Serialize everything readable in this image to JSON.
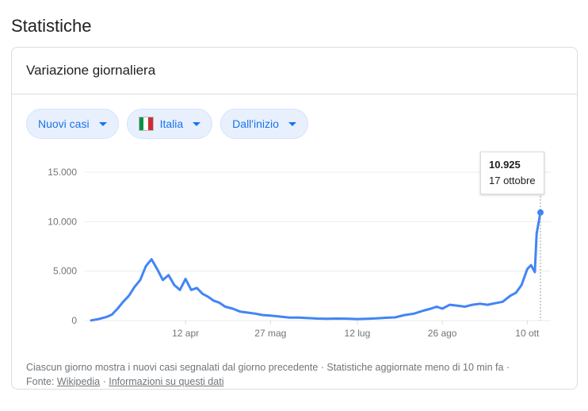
{
  "section_title": "Statistiche",
  "card": {
    "title": "Variazione giornaliera",
    "filters": [
      {
        "label": "Nuovi casi",
        "icon": "dropdown-caret-icon"
      },
      {
        "label": "Italia",
        "icon": "italy-flag-icon",
        "flag_colors": [
          "#009246",
          "#ffffff",
          "#ce2b37"
        ]
      },
      {
        "label": "Dall'inizio",
        "icon": "dropdown-caret-icon"
      }
    ]
  },
  "tooltip": {
    "value": "10.925",
    "date": "17 ottobre"
  },
  "footer": {
    "line1": "Ciascun giorno mostra i nuovi casi segnalati dal giorno precedente · Statistiche aggiornate meno di 10 min fa ·",
    "source_label": "Fonte:",
    "source_link": "Wikipedia",
    "separator": "·",
    "info_link": "Informazioni su questi dati"
  },
  "colors": {
    "line": "#4285f4",
    "accent": "#1a73e8",
    "grid": "#ebebeb"
  },
  "chart_data": {
    "type": "line",
    "title": "",
    "xlabel": "",
    "ylabel": "",
    "ylim": [
      0,
      15000
    ],
    "y_ticks": [
      0,
      5000,
      10000,
      15000
    ],
    "y_tick_labels": [
      "0",
      "5.000",
      "10.000",
      "15.000"
    ],
    "x_ticks": [
      "2020-04-12",
      "2020-05-27",
      "2020-07-12",
      "2020-08-26",
      "2020-10-10"
    ],
    "x_tick_labels": [
      "12 apr",
      "27 mag",
      "12 lug",
      "26 ago",
      "10 ott"
    ],
    "grid": true,
    "series": [
      {
        "dates": [
          "2020-02-22",
          "2020-02-26",
          "2020-03-01",
          "2020-03-04",
          "2020-03-07",
          "2020-03-10",
          "2020-03-13",
          "2020-03-16",
          "2020-03-19",
          "2020-03-22",
          "2020-03-25",
          "2020-03-28",
          "2020-03-31",
          "2020-04-03",
          "2020-04-06",
          "2020-04-09",
          "2020-04-12",
          "2020-04-15",
          "2020-04-18",
          "2020-04-21",
          "2020-04-24",
          "2020-04-27",
          "2020-04-30",
          "2020-05-03",
          "2020-05-07",
          "2020-05-11",
          "2020-05-15",
          "2020-05-19",
          "2020-05-23",
          "2020-05-27",
          "2020-06-01",
          "2020-06-06",
          "2020-06-11",
          "2020-06-16",
          "2020-06-21",
          "2020-06-26",
          "2020-07-01",
          "2020-07-06",
          "2020-07-12",
          "2020-07-17",
          "2020-07-22",
          "2020-07-27",
          "2020-08-01",
          "2020-08-06",
          "2020-08-11",
          "2020-08-16",
          "2020-08-20",
          "2020-08-23",
          "2020-08-26",
          "2020-08-30",
          "2020-09-03",
          "2020-09-07",
          "2020-09-11",
          "2020-09-15",
          "2020-09-19",
          "2020-09-23",
          "2020-09-27",
          "2020-10-01",
          "2020-10-04",
          "2020-10-07",
          "2020-10-10",
          "2020-10-12",
          "2020-10-14",
          "2020-10-15",
          "2020-10-17"
        ],
        "values": [
          20,
          150,
          350,
          600,
          1200,
          1900,
          2500,
          3400,
          4100,
          5500,
          6200,
          5200,
          4100,
          4600,
          3600,
          3100,
          4200,
          3100,
          3300,
          2700,
          2400,
          2000,
          1800,
          1400,
          1200,
          900,
          800,
          700,
          550,
          500,
          400,
          300,
          300,
          250,
          200,
          180,
          200,
          190,
          150,
          180,
          220,
          280,
          320,
          550,
          700,
          1000,
          1200,
          1400,
          1200,
          1600,
          1500,
          1400,
          1600,
          1700,
          1600,
          1750,
          1900,
          2500,
          2800,
          3600,
          5200,
          5600,
          4900,
          8800,
          10925
        ]
      }
    ]
  }
}
